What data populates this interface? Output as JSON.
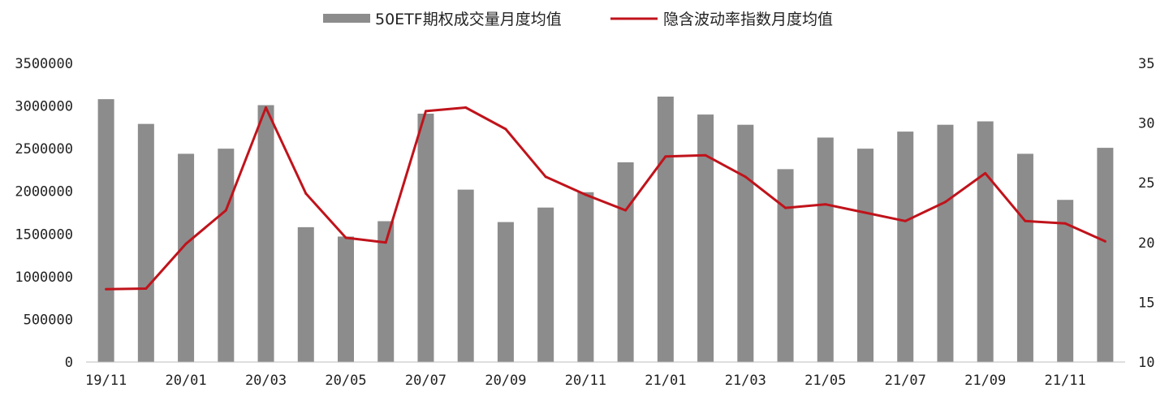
{
  "chart_data": {
    "type": "bar",
    "categories": [
      "19/11",
      "19/12",
      "20/01",
      "20/02",
      "20/03",
      "20/04",
      "20/05",
      "20/06",
      "20/07",
      "20/08",
      "20/09",
      "20/10",
      "20/11",
      "20/12",
      "21/01",
      "21/02",
      "21/03",
      "21/04",
      "21/05",
      "21/06",
      "21/07",
      "21/08",
      "21/09",
      "21/10",
      "21/11",
      "21/12"
    ],
    "x_tick_labels": [
      "19/11",
      "20/01",
      "20/03",
      "20/05",
      "20/07",
      "20/09",
      "20/11",
      "21/01",
      "21/03",
      "21/05",
      "21/07",
      "21/09",
      "21/11"
    ],
    "series": [
      {
        "name": "50ETF期权成交量月度均值",
        "type": "bar",
        "axis": "left",
        "color": "#8c8c8c",
        "values": [
          3080000,
          2790000,
          2440000,
          2500000,
          3010000,
          1580000,
          1470000,
          1650000,
          2910000,
          2020000,
          1640000,
          1810000,
          1990000,
          2340000,
          3110000,
          2900000,
          2780000,
          2260000,
          2630000,
          2500000,
          2700000,
          2780000,
          2820000,
          2440000,
          1900000,
          2510000
        ]
      },
      {
        "name": "隐含波动率指数月度均值",
        "type": "line",
        "axis": "right",
        "color": "#c0131b",
        "values": [
          16.1,
          16.15,
          19.9,
          22.7,
          31.3,
          24.1,
          20.4,
          20.0,
          31.0,
          31.3,
          29.5,
          25.5,
          24.0,
          22.7,
          27.2,
          27.3,
          25.5,
          22.9,
          23.2,
          22.5,
          21.8,
          23.4,
          25.8,
          21.8,
          21.6,
          20.1
        ]
      }
    ],
    "y_left": {
      "ylim": [
        0,
        3500000
      ],
      "ticks": [
        "0",
        "500000",
        "1000000",
        "1500000",
        "2000000",
        "2500000",
        "3000000",
        "3500000"
      ]
    },
    "y_right": {
      "ylim": [
        10,
        35
      ],
      "ticks": [
        "10",
        "15",
        "20",
        "25",
        "30",
        "35"
      ]
    },
    "legend_position": "top-center",
    "grid": false
  }
}
